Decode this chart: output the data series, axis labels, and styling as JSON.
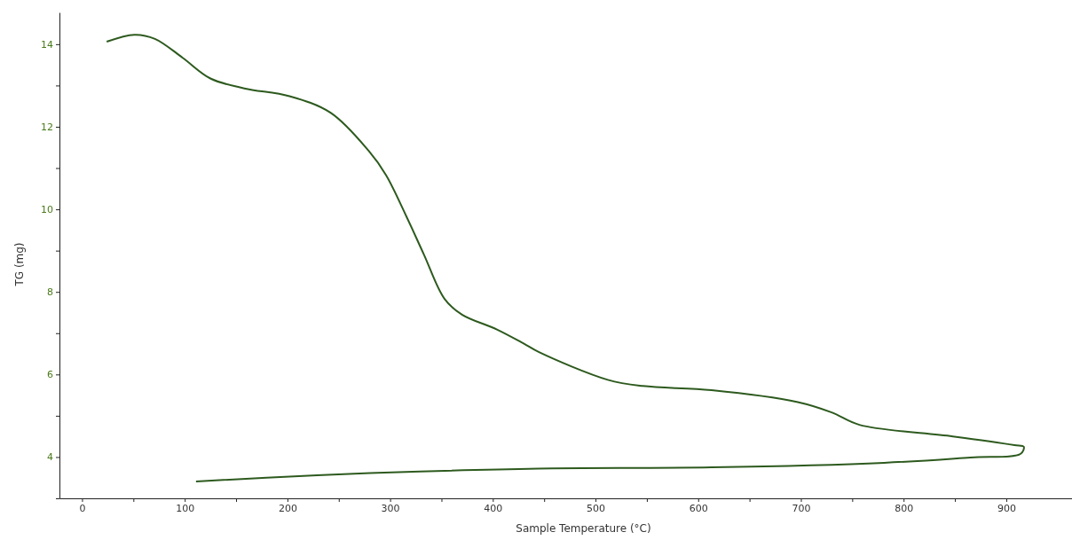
{
  "chart_data": {
    "type": "line",
    "xlabel": "Sample Temperature (°C)",
    "ylabel": "TG (mg)",
    "xlim": [
      -22,
      964
    ],
    "ylim": [
      3,
      14.77
    ],
    "xticks": [
      0,
      {
        "value": 50,
        "label": null
      },
      100,
      {
        "value": 150,
        "label": null
      },
      200,
      {
        "value": 250,
        "label": null
      },
      300,
      {
        "value": 350,
        "label": null
      },
      400,
      {
        "value": 450,
        "label": null
      },
      500,
      {
        "value": 550,
        "label": null
      },
      600,
      {
        "value": 650,
        "label": null
      },
      700,
      {
        "value": 750,
        "label": null
      },
      800,
      {
        "value": 850,
        "label": null
      },
      900
    ],
    "yticks": [
      {
        "value": 3,
        "label": null
      },
      4,
      {
        "value": 5,
        "label": null
      },
      6,
      {
        "value": 7,
        "label": null
      },
      8,
      {
        "value": 9,
        "label": null
      },
      10,
      {
        "value": 11,
        "label": null
      },
      12,
      {
        "value": 13,
        "label": null
      },
      14
    ],
    "grid": false,
    "series": [
      {
        "color": "#2d5a1e",
        "x": [
          24,
          51,
          71,
          98,
          125,
          158,
          202,
          242,
          279,
          296,
          316,
          333,
          353,
          370,
          404,
          430,
          445,
          512,
          546,
          613,
          697,
          730,
          757,
          848,
          908,
          917,
          914,
          865,
          781,
          613,
          444,
          329,
          229,
          111
        ],
        "values": [
          14.06,
          14.23,
          14.13,
          13.67,
          13.17,
          12.93,
          12.74,
          12.34,
          11.42,
          10.83,
          9.82,
          8.9,
          7.83,
          7.45,
          7.09,
          6.75,
          6.54,
          5.87,
          5.72,
          5.62,
          5.33,
          5.08,
          4.78,
          4.5,
          4.29,
          4.25,
          4.08,
          3.99,
          3.86,
          3.75,
          3.72,
          3.65,
          3.56,
          3.41
        ]
      }
    ]
  }
}
